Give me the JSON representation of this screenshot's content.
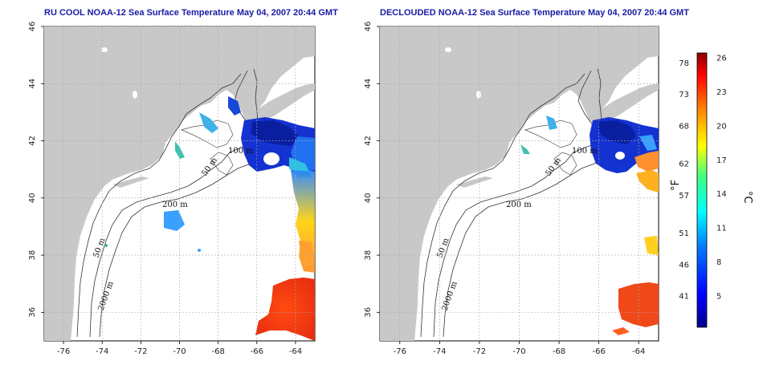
{
  "left_title": "RU COOL NOAA-12 Sea Surface Temperature May 04, 2007 20:44 GMT",
  "right_title": "DECLOUDED NOAA-12 Sea Surface Temperature May 04, 2007 20:44 GMT",
  "x_ticks": [
    "-76",
    "-74",
    "-72",
    "-70",
    "-68",
    "-66",
    "-64"
  ],
  "y_ticks": [
    "46",
    "44",
    "42",
    "40",
    "38",
    "36"
  ],
  "isobaths": {
    "m100": "100 m",
    "m50a": "50 m",
    "m200": "200 m",
    "m50b": "50 m",
    "m2000": "2000 m"
  },
  "colorbar": {
    "f_ticks": [
      "78",
      "73",
      "68",
      "62",
      "57",
      "51",
      "46",
      "41"
    ],
    "c_ticks": [
      "26",
      "23",
      "20",
      "17",
      "14",
      "11",
      "8",
      "5"
    ],
    "f_label": "°F",
    "c_label": "°C"
  },
  "colors": {
    "land": "#c8c8c8",
    "title": "#1a1aa6",
    "cold": "#1432d0",
    "warm": "#ff5a14"
  }
}
